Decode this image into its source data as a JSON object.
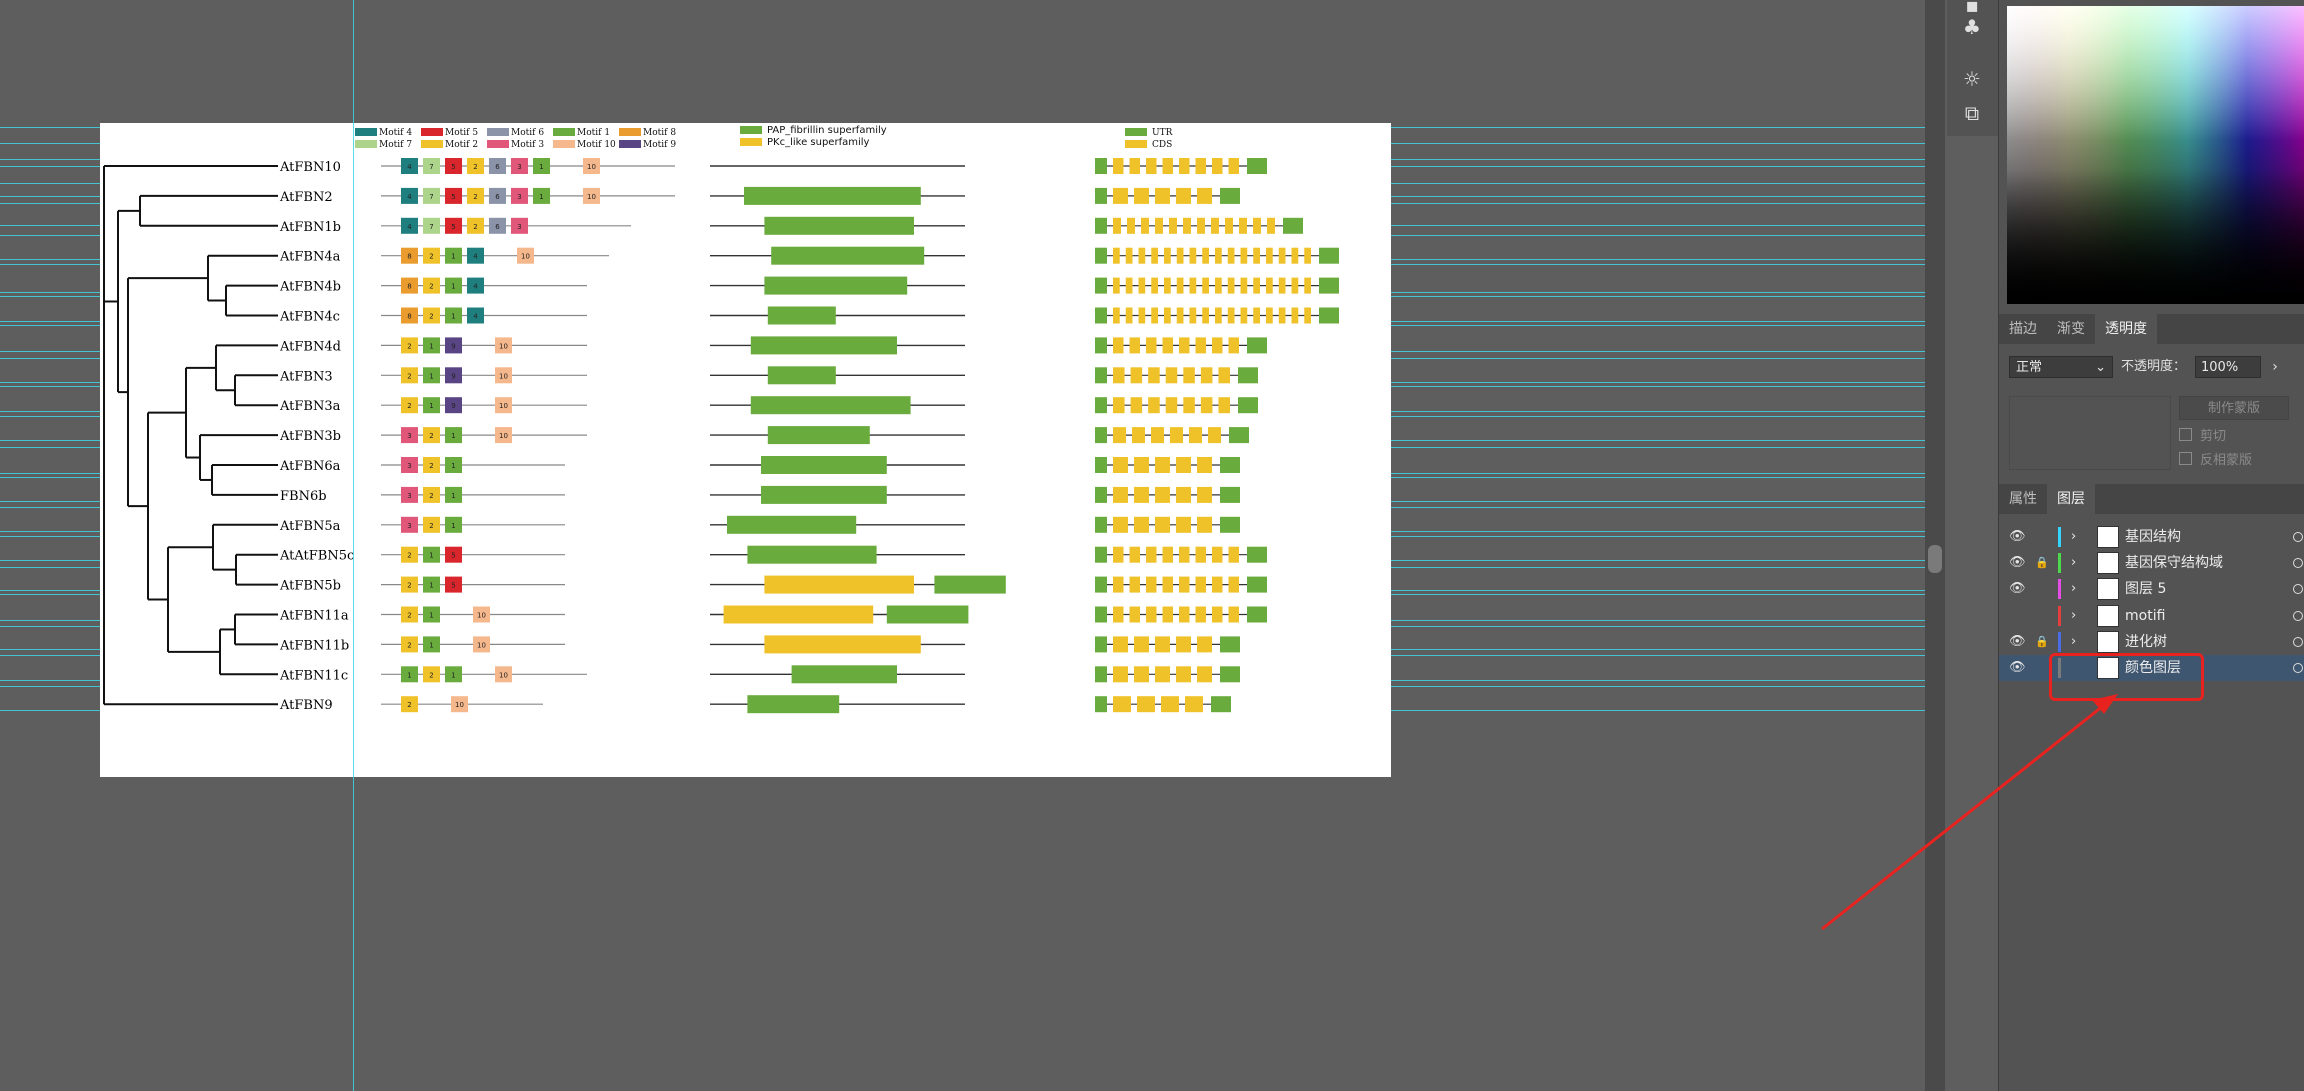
{
  "colors": {
    "motif": {
      "1": "#6aab3e",
      "2": "#f0c22a",
      "3": "#e0577a",
      "4": "#1f7f7f",
      "5": "#d9262c",
      "6": "#8a93a8",
      "7": "#acd48a",
      "8": "#ea9d2e",
      "9": "#5a4584",
      "10": "#f5b78c"
    },
    "domain": {
      "pap": "#6aab3e",
      "pkc": "#f0c22a"
    },
    "gene": {
      "utr": "#6aab3e",
      "cds": "#f0c22a"
    }
  },
  "figure": {
    "motif_legend": [
      {
        "id": "4",
        "label": "Motif 4"
      },
      {
        "id": "5",
        "label": "Motif 5"
      },
      {
        "id": "6",
        "label": "Motif 6"
      },
      {
        "id": "1",
        "label": "Motif 1"
      },
      {
        "id": "8",
        "label": "Motif 8"
      },
      {
        "id": "7",
        "label": "Motif 7"
      },
      {
        "id": "2",
        "label": "Motif 2"
      },
      {
        "id": "3",
        "label": "Motif 3"
      },
      {
        "id": "10",
        "label": "Motif 10"
      },
      {
        "id": "9",
        "label": "Motif 9"
      }
    ],
    "domain_legend": [
      {
        "key": "pap",
        "label": "PAP_fibrillin superfamily"
      },
      {
        "key": "pkc",
        "label": "PKc_like superfamily"
      }
    ],
    "gene_legend": [
      {
        "key": "utr",
        "label": "UTR"
      },
      {
        "key": "cds",
        "label": "CDS"
      }
    ],
    "genes": [
      {
        "name": "AtFBN10",
        "motifs": [
          "4",
          "7",
          "5",
          "2",
          "6",
          "3",
          "1",
          "10"
        ],
        "domains": [],
        "exons": 8
      },
      {
        "name": "AtFBN2",
        "motifs": [
          "4",
          "7",
          "5",
          "2",
          "6",
          "3",
          "1",
          "10"
        ],
        "domains": [
          {
            "t": "pap",
            "s": 0.1,
            "e": 0.62
          }
        ],
        "exons": 5
      },
      {
        "name": "AtFBN1b",
        "motifs": [
          "4",
          "7",
          "5",
          "2",
          "6",
          "3"
        ],
        "domains": [
          {
            "t": "pap",
            "s": 0.16,
            "e": 0.6
          }
        ],
        "exons": 12
      },
      {
        "name": "AtFBN4a",
        "motifs": [
          "8",
          "2",
          "1",
          "4",
          "10"
        ],
        "domains": [
          {
            "t": "pap",
            "s": 0.18,
            "e": 0.63
          }
        ],
        "exons": 16
      },
      {
        "name": "AtFBN4b",
        "motifs": [
          "8",
          "2",
          "1",
          "4"
        ],
        "domains": [
          {
            "t": "pap",
            "s": 0.16,
            "e": 0.58
          }
        ],
        "exons": 16
      },
      {
        "name": "AtFBN4c",
        "motifs": [
          "8",
          "2",
          "1",
          "4"
        ],
        "domains": [
          {
            "t": "pap",
            "s": 0.17,
            "e": 0.37
          }
        ],
        "exons": 16
      },
      {
        "name": "AtFBN4d",
        "motifs": [
          "2",
          "1",
          "9",
          "10"
        ],
        "domains": [
          {
            "t": "pap",
            "s": 0.12,
            "e": 0.55
          }
        ],
        "exons": 8
      },
      {
        "name": "AtFBN3",
        "motifs": [
          "2",
          "1",
          "9",
          "10"
        ],
        "domains": [
          {
            "t": "pap",
            "s": 0.17,
            "e": 0.37
          }
        ],
        "exons": 7
      },
      {
        "name": "AtFBN3a",
        "motifs": [
          "2",
          "1",
          "9",
          "10"
        ],
        "domains": [
          {
            "t": "pap",
            "s": 0.12,
            "e": 0.59
          }
        ],
        "exons": 7
      },
      {
        "name": "AtFBN3b",
        "motifs": [
          "3",
          "2",
          "1",
          "10"
        ],
        "domains": [
          {
            "t": "pap",
            "s": 0.17,
            "e": 0.47
          }
        ],
        "exons": 6
      },
      {
        "name": "AtFBN6a",
        "motifs": [
          "3",
          "2",
          "1"
        ],
        "domains": [
          {
            "t": "pap",
            "s": 0.15,
            "e": 0.52
          }
        ],
        "exons": 5
      },
      {
        "name": "FBN6b",
        "motifs": [
          "3",
          "2",
          "1"
        ],
        "domains": [
          {
            "t": "pap",
            "s": 0.15,
            "e": 0.52
          }
        ],
        "exons": 5
      },
      {
        "name": "AtFBN5a",
        "motifs": [
          "3",
          "2",
          "1"
        ],
        "domains": [
          {
            "t": "pap",
            "s": 0.05,
            "e": 0.43
          }
        ],
        "exons": 5
      },
      {
        "name": "AtAtFBN5c",
        "motifs": [
          "2",
          "1",
          "5"
        ],
        "domains": [
          {
            "t": "pap",
            "s": 0.11,
            "e": 0.49
          }
        ],
        "exons": 8
      },
      {
        "name": "AtFBN5b",
        "motifs": [
          "2",
          "1",
          "5"
        ],
        "domains": [
          {
            "t": "pkc",
            "s": 0.16,
            "e": 0.6
          },
          {
            "t": "pap",
            "s": 0.66,
            "e": 0.87
          }
        ],
        "exons": 8
      },
      {
        "name": "AtFBN11a",
        "motifs": [
          "2",
          "1",
          "10"
        ],
        "domains": [
          {
            "t": "pkc",
            "s": 0.04,
            "e": 0.48
          },
          {
            "t": "pap",
            "s": 0.52,
            "e": 0.76
          }
        ],
        "exons": 8
      },
      {
        "name": "AtFBN11b",
        "motifs": [
          "2",
          "1",
          "10"
        ],
        "domains": [
          {
            "t": "pkc",
            "s": 0.16,
            "e": 0.62
          }
        ],
        "exons": 5
      },
      {
        "name": "AtFBN11c",
        "motifs": [
          "1",
          "2",
          "1",
          "10"
        ],
        "domains": [
          {
            "t": "pap",
            "s": 0.24,
            "e": 0.55
          }
        ],
        "exons": 5
      },
      {
        "name": "AtFBN9",
        "motifs": [
          "2",
          "10"
        ],
        "domains": [
          {
            "t": "pap",
            "s": 0.11,
            "e": 0.38
          }
        ],
        "exons": 4
      }
    ]
  },
  "panel": {
    "appearance_tabs": [
      {
        "label": "描边",
        "active": false
      },
      {
        "label": "渐变",
        "active": false
      },
      {
        "label": "透明度",
        "active": true
      }
    ],
    "blend_mode": "正常",
    "opacity_label": "不透明度：",
    "opacity_value": "100%",
    "make_mask_label": "制作蒙版",
    "clip_label": "剪切",
    "invert_mask_label": "反相蒙版",
    "layer_tabs": [
      {
        "label": "属性",
        "active": false
      },
      {
        "label": "图层",
        "active": true
      }
    ],
    "layers": [
      {
        "name": "基因结构",
        "visible": true,
        "locked": false,
        "color": "#33d4ff",
        "expandable": true,
        "selected": false
      },
      {
        "name": "基因保守结构域",
        "visible": true,
        "locked": true,
        "color": "#4cd94c",
        "expandable": true,
        "selected": false
      },
      {
        "name": "图层 5",
        "visible": true,
        "locked": false,
        "color": "#e64ce6",
        "expandable": true,
        "selected": false
      },
      {
        "name": "motifi",
        "visible": false,
        "locked": false,
        "color": "#e63e3e",
        "expandable": true,
        "selected": false
      },
      {
        "name": "进化树",
        "visible": true,
        "locked": true,
        "color": "#4a6de6",
        "expandable": true,
        "selected": false
      },
      {
        "name": "颜色图层",
        "visible": true,
        "locked": false,
        "color": "#7a7a7a",
        "expandable": false,
        "selected": true
      }
    ]
  }
}
